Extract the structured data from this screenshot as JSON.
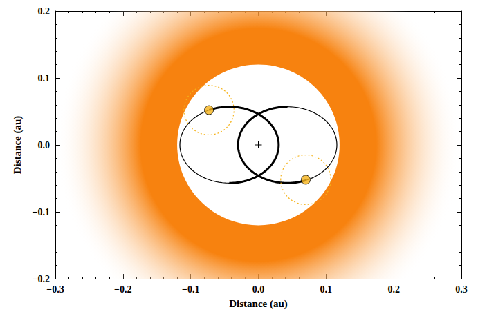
{
  "chart_data": {
    "type": "orbit",
    "x_label": "Distance (au)",
    "y_label": "Distance (au)",
    "xlim": [
      -0.3,
      0.3
    ],
    "ylim": [
      -0.2,
      0.2
    ],
    "xticks": [
      {
        "value": -0.3,
        "label": "−0.3"
      },
      {
        "value": -0.2,
        "label": "−0.2"
      },
      {
        "value": -0.1,
        "label": "−0.1"
      },
      {
        "value": 0,
        "label": "0.0"
      },
      {
        "value": 0.1,
        "label": "0.1"
      },
      {
        "value": 0.2,
        "label": "0.2"
      },
      {
        "value": 0.3,
        "label": "0.3"
      }
    ],
    "yticks": [
      {
        "value": -0.2,
        "label": "−0.2"
      },
      {
        "value": -0.1,
        "label": "−0.1"
      },
      {
        "value": 0,
        "label": "0.0"
      },
      {
        "value": 0.1,
        "label": "0.1"
      },
      {
        "value": 0.2,
        "label": "0.2"
      }
    ],
    "center": {
      "x": 0,
      "y": 0,
      "marker": "plus"
    },
    "disk": {
      "inner_radius": 0.12,
      "outer_radius": 0.3,
      "color": "#f7820f"
    },
    "orbits": [
      {
        "cx": -0.043,
        "cy": 0,
        "rx": 0.073,
        "ry": 0.057,
        "thick_from_deg": -90,
        "thick_to_deg": 114
      },
      {
        "cx": 0.043,
        "cy": 0,
        "rx": 0.073,
        "ry": 0.057,
        "thick_from_deg": 90,
        "thick_to_deg": 292
      }
    ],
    "planets": [
      {
        "x": -0.073,
        "y": 0.052,
        "color": "#f5b31a",
        "circle_radius": 0.037
      },
      {
        "x": 0.07,
        "y": -0.052,
        "color": "#f5b31a",
        "circle_radius": 0.037
      }
    ]
  }
}
